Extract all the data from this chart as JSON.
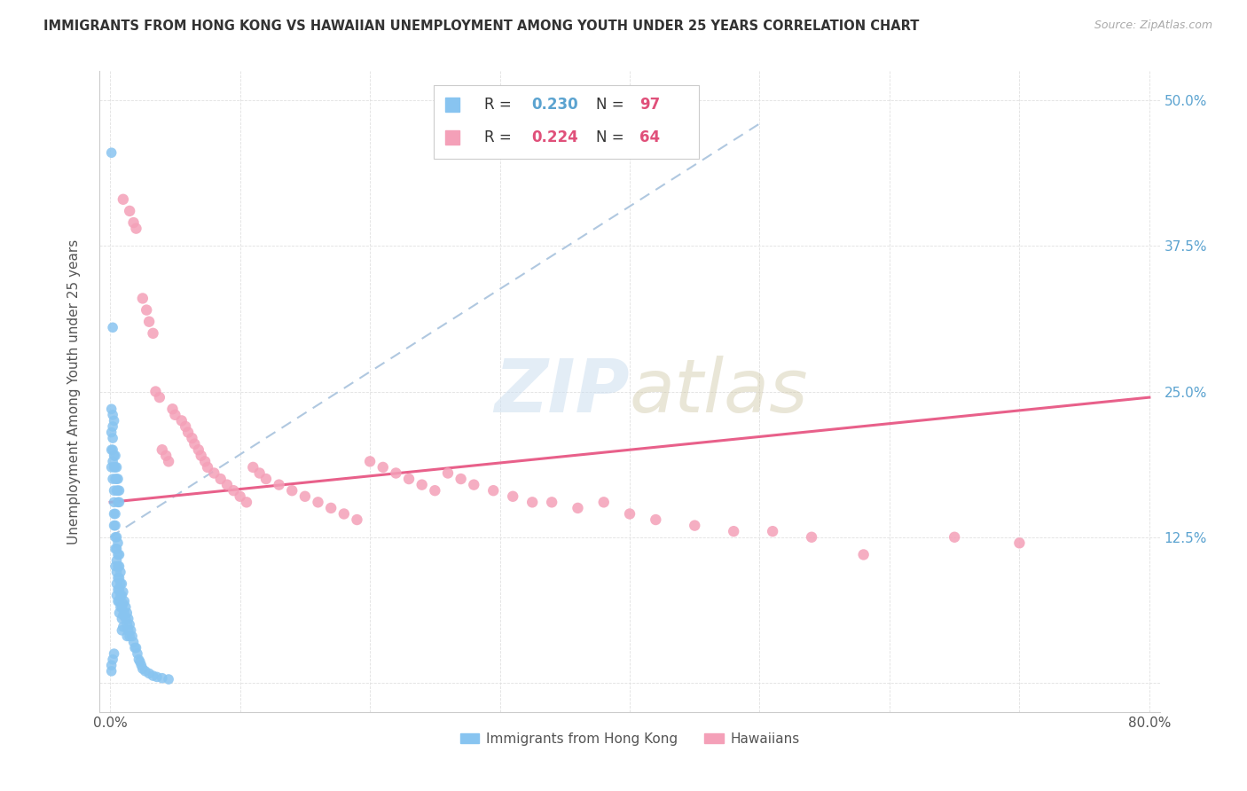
{
  "title": "IMMIGRANTS FROM HONG KONG VS HAWAIIAN UNEMPLOYMENT AMONG YOUTH UNDER 25 YEARS CORRELATION CHART",
  "source": "Source: ZipAtlas.com",
  "ylabel": "Unemployment Among Youth under 25 years",
  "xlim": [
    -0.008,
    0.808
  ],
  "ylim": [
    -0.025,
    0.525
  ],
  "xticks": [
    0.0,
    0.1,
    0.2,
    0.3,
    0.4,
    0.5,
    0.6,
    0.7,
    0.8
  ],
  "xticklabels": [
    "0.0%",
    "",
    "",
    "",
    "",
    "",
    "",
    "",
    "80.0%"
  ],
  "yticks": [
    0.0,
    0.125,
    0.25,
    0.375,
    0.5
  ],
  "yticklabels": [
    "",
    "12.5%",
    "25.0%",
    "37.5%",
    "50.0%"
  ],
  "label1": "Immigrants from Hong Kong",
  "label2": "Hawaiians",
  "color1": "#88c4f0",
  "color2": "#f4a0b8",
  "trendline1_color": "#b0c8e0",
  "trendline2_color": "#e8608a",
  "tick_color": "#5ba3d0",
  "watermark_color": "#ccdff0",
  "hk_x": [
    0.001,
    0.002,
    0.002,
    0.003,
    0.003,
    0.003,
    0.003,
    0.004,
    0.004,
    0.004,
    0.004,
    0.004,
    0.005,
    0.005,
    0.005,
    0.005,
    0.005,
    0.005,
    0.006,
    0.006,
    0.006,
    0.006,
    0.006,
    0.006,
    0.007,
    0.007,
    0.007,
    0.007,
    0.007,
    0.007,
    0.008,
    0.008,
    0.008,
    0.008,
    0.009,
    0.009,
    0.009,
    0.009,
    0.009,
    0.01,
    0.01,
    0.01,
    0.01,
    0.011,
    0.011,
    0.012,
    0.012,
    0.013,
    0.013,
    0.013,
    0.014,
    0.014,
    0.015,
    0.015,
    0.016,
    0.017,
    0.018,
    0.019,
    0.02,
    0.021,
    0.022,
    0.023,
    0.024,
    0.025,
    0.027,
    0.03,
    0.033,
    0.036,
    0.04,
    0.045,
    0.002,
    0.002,
    0.003,
    0.003,
    0.004,
    0.004,
    0.004,
    0.005,
    0.005,
    0.005,
    0.006,
    0.006,
    0.006,
    0.007,
    0.007,
    0.001,
    0.001,
    0.001,
    0.001,
    0.002,
    0.002,
    0.002,
    0.003,
    0.003,
    0.002,
    0.001,
    0.001
  ],
  "hk_y": [
    0.455,
    0.305,
    0.175,
    0.165,
    0.155,
    0.145,
    0.135,
    0.145,
    0.135,
    0.125,
    0.115,
    0.1,
    0.125,
    0.115,
    0.105,
    0.095,
    0.085,
    0.075,
    0.12,
    0.11,
    0.1,
    0.09,
    0.08,
    0.07,
    0.11,
    0.1,
    0.09,
    0.08,
    0.07,
    0.06,
    0.095,
    0.085,
    0.075,
    0.065,
    0.085,
    0.075,
    0.065,
    0.055,
    0.045,
    0.078,
    0.068,
    0.058,
    0.048,
    0.07,
    0.06,
    0.065,
    0.055,
    0.06,
    0.05,
    0.04,
    0.055,
    0.045,
    0.05,
    0.04,
    0.045,
    0.04,
    0.035,
    0.03,
    0.03,
    0.025,
    0.02,
    0.018,
    0.015,
    0.012,
    0.01,
    0.008,
    0.006,
    0.005,
    0.004,
    0.003,
    0.2,
    0.19,
    0.195,
    0.185,
    0.195,
    0.185,
    0.175,
    0.185,
    0.175,
    0.165,
    0.175,
    0.165,
    0.155,
    0.165,
    0.155,
    0.215,
    0.2,
    0.185,
    0.015,
    0.22,
    0.21,
    0.02,
    0.225,
    0.025,
    0.23,
    0.235,
    0.01
  ],
  "haw_x": [
    0.01,
    0.015,
    0.018,
    0.02,
    0.025,
    0.028,
    0.03,
    0.033,
    0.035,
    0.038,
    0.04,
    0.043,
    0.045,
    0.048,
    0.05,
    0.055,
    0.058,
    0.06,
    0.063,
    0.065,
    0.068,
    0.07,
    0.073,
    0.075,
    0.08,
    0.085,
    0.09,
    0.095,
    0.1,
    0.105,
    0.11,
    0.115,
    0.12,
    0.13,
    0.14,
    0.15,
    0.16,
    0.17,
    0.18,
    0.19,
    0.2,
    0.21,
    0.22,
    0.23,
    0.24,
    0.25,
    0.26,
    0.27,
    0.28,
    0.295,
    0.31,
    0.325,
    0.34,
    0.36,
    0.38,
    0.4,
    0.42,
    0.45,
    0.48,
    0.51,
    0.54,
    0.58,
    0.65,
    0.7
  ],
  "haw_y": [
    0.415,
    0.405,
    0.395,
    0.39,
    0.33,
    0.32,
    0.31,
    0.3,
    0.25,
    0.245,
    0.2,
    0.195,
    0.19,
    0.235,
    0.23,
    0.225,
    0.22,
    0.215,
    0.21,
    0.205,
    0.2,
    0.195,
    0.19,
    0.185,
    0.18,
    0.175,
    0.17,
    0.165,
    0.16,
    0.155,
    0.185,
    0.18,
    0.175,
    0.17,
    0.165,
    0.16,
    0.155,
    0.15,
    0.145,
    0.14,
    0.19,
    0.185,
    0.18,
    0.175,
    0.17,
    0.165,
    0.18,
    0.175,
    0.17,
    0.165,
    0.16,
    0.155,
    0.155,
    0.15,
    0.155,
    0.145,
    0.14,
    0.135,
    0.13,
    0.13,
    0.125,
    0.11,
    0.125,
    0.12
  ]
}
